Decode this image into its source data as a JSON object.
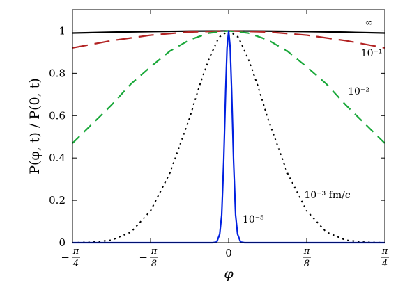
{
  "chart_data": {
    "type": "line",
    "title": "",
    "xlabel": "φ",
    "ylabel": "P(φ, t) / P(0, t)",
    "xlim": [
      -0.7853981634,
      0.7853981634
    ],
    "ylim": [
      0,
      1.1
    ],
    "grid": false,
    "x_ticks": [
      {
        "value": -0.7853981634,
        "sign": "−",
        "num": "π",
        "den": "4"
      },
      {
        "value": -0.3926990817,
        "sign": "−",
        "num": "π",
        "den": "8"
      },
      {
        "value": 0,
        "sign": "",
        "num": "0",
        "den": ""
      },
      {
        "value": 0.3926990817,
        "sign": "",
        "num": "π",
        "den": "8"
      },
      {
        "value": 0.7853981634,
        "sign": "",
        "num": "π",
        "den": "4"
      }
    ],
    "y_ticks": [
      {
        "value": 0,
        "label": "0"
      },
      {
        "value": 0.2,
        "label": "0.2"
      },
      {
        "value": 0.4,
        "label": "0.4"
      },
      {
        "value": 0.6,
        "label": "0.6"
      },
      {
        "value": 0.8,
        "label": "0.8"
      },
      {
        "value": 1.0,
        "label": "1"
      }
    ],
    "series": [
      {
        "label": "∞",
        "color": "#000000",
        "style": "solid",
        "x": [
          -0.785,
          -0.589,
          -0.393,
          -0.196,
          0,
          0.196,
          0.393,
          0.589,
          0.785
        ],
        "y": [
          0.99,
          0.994,
          0.997,
          0.999,
          1.0,
          0.999,
          0.997,
          0.994,
          0.99
        ]
      },
      {
        "label": "10⁻¹",
        "color": "#b22222",
        "style": "longdash",
        "x": [
          -0.785,
          -0.589,
          -0.393,
          -0.196,
          0,
          0.196,
          0.393,
          0.589,
          0.785
        ],
        "y": [
          0.92,
          0.954,
          0.98,
          0.995,
          1.0,
          0.995,
          0.98,
          0.954,
          0.92
        ]
      },
      {
        "label": "10⁻²",
        "color": "#1aa83a",
        "style": "dash",
        "x": [
          -0.785,
          -0.687,
          -0.589,
          -0.491,
          -0.393,
          -0.295,
          -0.196,
          -0.098,
          0,
          0.098,
          0.196,
          0.295,
          0.393,
          0.491,
          0.589,
          0.687,
          0.785
        ],
        "y": [
          0.47,
          0.56,
          0.65,
          0.75,
          0.83,
          0.905,
          0.958,
          0.99,
          1.0,
          0.99,
          0.958,
          0.905,
          0.83,
          0.75,
          0.65,
          0.56,
          0.47
        ]
      },
      {
        "label": "10⁻³ fm/c",
        "color": "#000000",
        "style": "dot",
        "x": [
          -0.785,
          -0.687,
          -0.589,
          -0.491,
          -0.393,
          -0.295,
          -0.196,
          -0.147,
          -0.098,
          -0.049,
          0,
          0.049,
          0.098,
          0.147,
          0.196,
          0.295,
          0.393,
          0.491,
          0.589,
          0.687,
          0.785
        ],
        "y": [
          0.0,
          0.002,
          0.012,
          0.05,
          0.15,
          0.33,
          0.59,
          0.74,
          0.87,
          0.97,
          1.0,
          0.97,
          0.87,
          0.74,
          0.59,
          0.33,
          0.15,
          0.05,
          0.012,
          0.002,
          0.0
        ]
      },
      {
        "label": "10⁻⁵",
        "color": "#0020e0",
        "style": "solid",
        "x": [
          -0.785,
          -0.08,
          -0.06,
          -0.045,
          -0.035,
          -0.025,
          -0.015,
          -0.008,
          0,
          0.008,
          0.015,
          0.025,
          0.035,
          0.045,
          0.06,
          0.08,
          0.785
        ],
        "y": [
          0.0,
          0.0,
          0.003,
          0.04,
          0.13,
          0.38,
          0.72,
          0.92,
          1.0,
          0.92,
          0.72,
          0.38,
          0.13,
          0.04,
          0.003,
          0.0,
          0.0
        ]
      }
    ],
    "annotations": [
      {
        "text": "∞",
        "x": 0.685,
        "y": 1.025
      },
      {
        "text": "10⁻¹",
        "x": 0.665,
        "y": 0.88
      },
      {
        "text": "10⁻²",
        "x": 0.6,
        "y": 0.7
      },
      {
        "text": "10⁻³ fm/c",
        "x": 0.38,
        "y": 0.21
      },
      {
        "text": "10⁻⁵",
        "x": 0.07,
        "y": 0.095
      }
    ]
  }
}
